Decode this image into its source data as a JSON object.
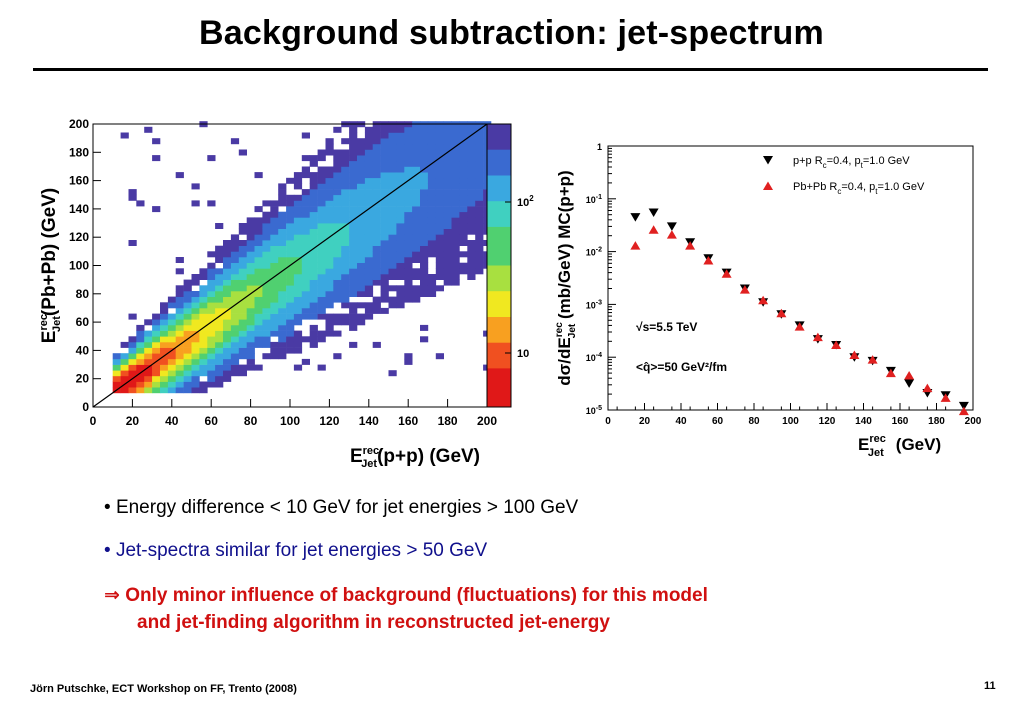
{
  "slide": {
    "title": "Background subtraction: jet-spectrum",
    "footer": "Jörn Putschke, ECT Workshop on FF, Trento (2008)",
    "page_number": "11"
  },
  "bullets": [
    {
      "marker": "•",
      "text": "Energy difference < 10 GeV for jet energies > 100 GeV",
      "color": "#000000"
    },
    {
      "marker": "•",
      "text": "Jet-spectra similar for jet energies > 50 GeV",
      "color": "#10108c"
    },
    {
      "marker": "⇒",
      "text": "Only minor influence of background (fluctuations) for this model",
      "color": "#d01010"
    },
    {
      "marker": "",
      "text": "and jet-finding algorithm in reconstructed jet-energy",
      "color": "#d01010"
    }
  ],
  "chart_data": [
    {
      "type": "heatmap",
      "xlabel": "E_Jet^rec(p+p) (GeV)",
      "ylabel": "E_Jet^rec(Pb+Pb) (GeV)",
      "xlim": [
        0,
        200
      ],
      "ylim": [
        0,
        200
      ],
      "x_ticks": [
        "0",
        "20",
        "40",
        "60",
        "80",
        "100",
        "120",
        "140",
        "160",
        "180",
        "200"
      ],
      "y_ticks": [
        "0",
        "20",
        "40",
        "60",
        "80",
        "100",
        "120",
        "140",
        "160",
        "180",
        "200"
      ],
      "colorbar": {
        "log": true,
        "ticks": [
          "10",
          "10^2"
        ]
      },
      "reference_line": {
        "from": [
          0,
          0
        ],
        "to": [
          200,
          200
        ]
      },
      "colors": [
        "#4a3aa4",
        "#3a6ad0",
        "#3aa8e0",
        "#40d0c0",
        "#50d070",
        "#a8e040",
        "#f0e820",
        "#f8a020",
        "#f05020",
        "#e01818"
      ]
    },
    {
      "type": "scatter",
      "xlabel": "E_Jet^rec (GeV)",
      "ylabel": "dσ/dE_Jet^rec (mb/GeV) MC(p+p)",
      "xlim": [
        0,
        200
      ],
      "ylim": [
        1e-05,
        1
      ],
      "log_y": true,
      "x_ticks": [
        "0",
        "20",
        "40",
        "60",
        "80",
        "100",
        "120",
        "140",
        "160",
        "180",
        "200"
      ],
      "y_ticks": [
        {
          "base": "1",
          "exp": ""
        },
        {
          "base": "10",
          "exp": "-1"
        },
        {
          "base": "10",
          "exp": "-2"
        },
        {
          "base": "10",
          "exp": "-3"
        },
        {
          "base": "10",
          "exp": "-4"
        },
        {
          "base": "10",
          "exp": "-5"
        }
      ],
      "legend": [
        {
          "text": "p+p R_c=0.4, p_t=1.0 GeV",
          "marker": "triangle-down",
          "color": "#000000"
        },
        {
          "text": "Pb+Pb R_c=0.4, p_t=1.0 GeV",
          "marker": "triangle-up",
          "color": "#e02020"
        }
      ],
      "annotations": [
        "√s=5.5 TeV",
        "<q̂>=50 GeV²/fm"
      ],
      "series": [
        {
          "marker": "triangle-down",
          "color": "#000000",
          "x": [
            15,
            25,
            35,
            45,
            55,
            65,
            75,
            85,
            95,
            105,
            115,
            125,
            135,
            145,
            155,
            165,
            175,
            185,
            195
          ],
          "y": [
            0.045,
            0.055,
            0.03,
            0.015,
            0.0075,
            0.004,
            0.002,
            0.0011,
            0.00065,
            0.0004,
            0.00022,
            0.00017,
            0.0001,
            8.5e-05,
            5.5e-05,
            3.2e-05,
            2.1e-05,
            1.9e-05,
            1.2e-05
          ]
        },
        {
          "marker": "triangle-up",
          "color": "#e02020",
          "x": [
            15,
            25,
            35,
            45,
            55,
            65,
            75,
            85,
            95,
            105,
            115,
            125,
            135,
            145,
            155,
            165,
            175,
            185,
            195
          ],
          "y": [
            0.013,
            0.026,
            0.021,
            0.013,
            0.0068,
            0.0038,
            0.0019,
            0.0012,
            0.00068,
            0.00038,
            0.00024,
            0.00017,
            0.00011,
            9e-05,
            5e-05,
            4.5e-05,
            2.6e-05,
            1.7e-05,
            9.5e-06
          ]
        }
      ]
    }
  ]
}
